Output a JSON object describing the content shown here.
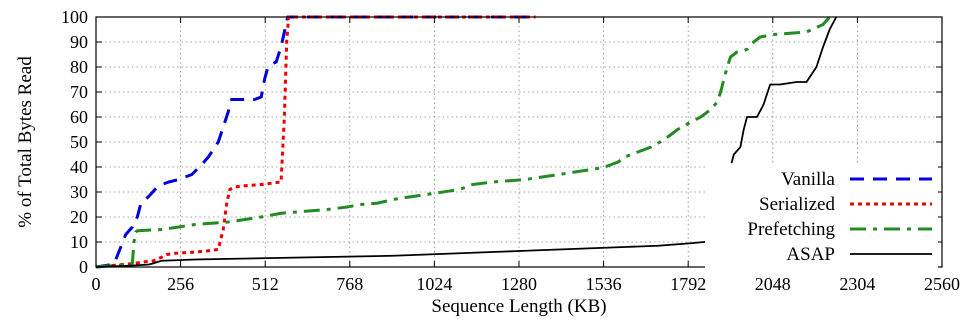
{
  "chart_data": {
    "type": "line",
    "xlabel": "Sequence Length (KB)",
    "ylabel": "% of Total Bytes Read",
    "xlim": [
      0,
      2560
    ],
    "ylim": [
      0,
      100
    ],
    "xticks": [
      0,
      256,
      512,
      768,
      1024,
      1280,
      1536,
      1792,
      2048,
      2304,
      2560
    ],
    "yticks": [
      0,
      10,
      20,
      30,
      40,
      50,
      60,
      70,
      80,
      90,
      100
    ],
    "grid": true,
    "legend_position": "bottom-right",
    "series": [
      {
        "name": "Vanilla",
        "color": "#0000dd",
        "dash": "dashed",
        "points": [
          [
            0,
            0
          ],
          [
            50,
            1
          ],
          [
            60,
            3
          ],
          [
            75,
            8
          ],
          [
            90,
            13
          ],
          [
            110,
            16
          ],
          [
            125,
            20
          ],
          [
            135,
            25
          ],
          [
            150,
            27
          ],
          [
            165,
            29
          ],
          [
            185,
            32
          ],
          [
            200,
            33
          ],
          [
            220,
            34
          ],
          [
            250,
            35
          ],
          [
            270,
            36
          ],
          [
            290,
            37
          ],
          [
            305,
            39
          ],
          [
            320,
            41
          ],
          [
            340,
            44
          ],
          [
            355,
            47
          ],
          [
            370,
            50
          ],
          [
            380,
            54
          ],
          [
            390,
            58
          ],
          [
            400,
            62
          ],
          [
            410,
            67
          ],
          [
            430,
            67
          ],
          [
            480,
            67
          ],
          [
            500,
            68
          ],
          [
            510,
            75
          ],
          [
            520,
            80
          ],
          [
            530,
            81
          ],
          [
            545,
            82
          ],
          [
            560,
            88
          ],
          [
            570,
            94
          ],
          [
            580,
            100
          ],
          [
            700,
            100
          ],
          [
            1000,
            100
          ],
          [
            1300,
            100
          ],
          [
            1330,
            100
          ]
        ]
      },
      {
        "name": "Serialized",
        "color": "#ee0000",
        "dash": "dotted",
        "points": [
          [
            0,
            0
          ],
          [
            40,
            0.5
          ],
          [
            80,
            1
          ],
          [
            120,
            1.5
          ],
          [
            140,
            2
          ],
          [
            175,
            2.5
          ],
          [
            200,
            4
          ],
          [
            215,
            5
          ],
          [
            240,
            5.5
          ],
          [
            300,
            6
          ],
          [
            340,
            6.5
          ],
          [
            370,
            7
          ],
          [
            385,
            15
          ],
          [
            395,
            25
          ],
          [
            405,
            31
          ],
          [
            420,
            32
          ],
          [
            450,
            32.5
          ],
          [
            500,
            33
          ],
          [
            560,
            34
          ],
          [
            570,
            60
          ],
          [
            577,
            90
          ],
          [
            583,
            100
          ],
          [
            800,
            100
          ],
          [
            1100,
            100
          ],
          [
            1300,
            100
          ],
          [
            1330,
            100
          ]
        ]
      },
      {
        "name": "Prefetching",
        "color": "#228b22",
        "dash": "dashdot",
        "points": [
          [
            0,
            0
          ],
          [
            100,
            1
          ],
          [
            110,
            1.5
          ],
          [
            115,
            10
          ],
          [
            120,
            14
          ],
          [
            125,
            14.5
          ],
          [
            200,
            15
          ],
          [
            250,
            16
          ],
          [
            300,
            17
          ],
          [
            400,
            18
          ],
          [
            500,
            20
          ],
          [
            540,
            21
          ],
          [
            560,
            21.5
          ],
          [
            700,
            23
          ],
          [
            760,
            24
          ],
          [
            800,
            25
          ],
          [
            850,
            25.5
          ],
          [
            900,
            27
          ],
          [
            920,
            27.5
          ],
          [
            1000,
            29
          ],
          [
            1100,
            31
          ],
          [
            1120,
            32
          ],
          [
            1140,
            33
          ],
          [
            1200,
            34
          ],
          [
            1300,
            35
          ],
          [
            1400,
            37
          ],
          [
            1500,
            39
          ],
          [
            1540,
            40
          ],
          [
            1580,
            42
          ],
          [
            1600,
            44
          ],
          [
            1620,
            45
          ],
          [
            1680,
            48
          ],
          [
            1720,
            51
          ],
          [
            1740,
            53
          ],
          [
            1760,
            55
          ],
          [
            1800,
            58
          ],
          [
            1830,
            60
          ],
          [
            1860,
            63
          ],
          [
            1880,
            66
          ],
          [
            1890,
            70
          ],
          [
            1900,
            75
          ],
          [
            1910,
            80
          ],
          [
            1920,
            84
          ],
          [
            1940,
            86
          ],
          [
            1970,
            87
          ],
          [
            1990,
            90
          ],
          [
            2010,
            92
          ],
          [
            2050,
            93
          ],
          [
            2100,
            93.5
          ],
          [
            2150,
            94
          ],
          [
            2200,
            97
          ],
          [
            2220,
            100
          ]
        ]
      },
      {
        "name": "ASAP",
        "color": "#000000",
        "dash": "solid",
        "points": [
          [
            0,
            0
          ],
          [
            100,
            0.5
          ],
          [
            160,
            1
          ],
          [
            175,
            1.5
          ],
          [
            185,
            2
          ],
          [
            200,
            2.5
          ],
          [
            300,
            3
          ],
          [
            500,
            3.5
          ],
          [
            700,
            4
          ],
          [
            900,
            4.5
          ],
          [
            1000,
            5
          ],
          [
            1100,
            5.5
          ],
          [
            1300,
            6.5
          ],
          [
            1400,
            7
          ],
          [
            1500,
            7.5
          ],
          [
            1600,
            8
          ],
          [
            1700,
            8.5
          ],
          [
            1750,
            9
          ],
          [
            1800,
            9.5
          ],
          [
            1840,
            10
          ],
          [
            1870,
            11
          ],
          [
            1890,
            11
          ],
          [
            1900,
            20
          ],
          [
            1910,
            30
          ],
          [
            1920,
            40
          ],
          [
            1930,
            45
          ],
          [
            1950,
            48
          ],
          [
            1960,
            55
          ],
          [
            1970,
            60
          ],
          [
            2000,
            60
          ],
          [
            2020,
            65
          ],
          [
            2040,
            73
          ],
          [
            2070,
            73
          ],
          [
            2120,
            74
          ],
          [
            2150,
            74
          ],
          [
            2180,
            80
          ],
          [
            2200,
            88
          ],
          [
            2220,
            95
          ],
          [
            2240,
            100
          ]
        ]
      }
    ]
  }
}
